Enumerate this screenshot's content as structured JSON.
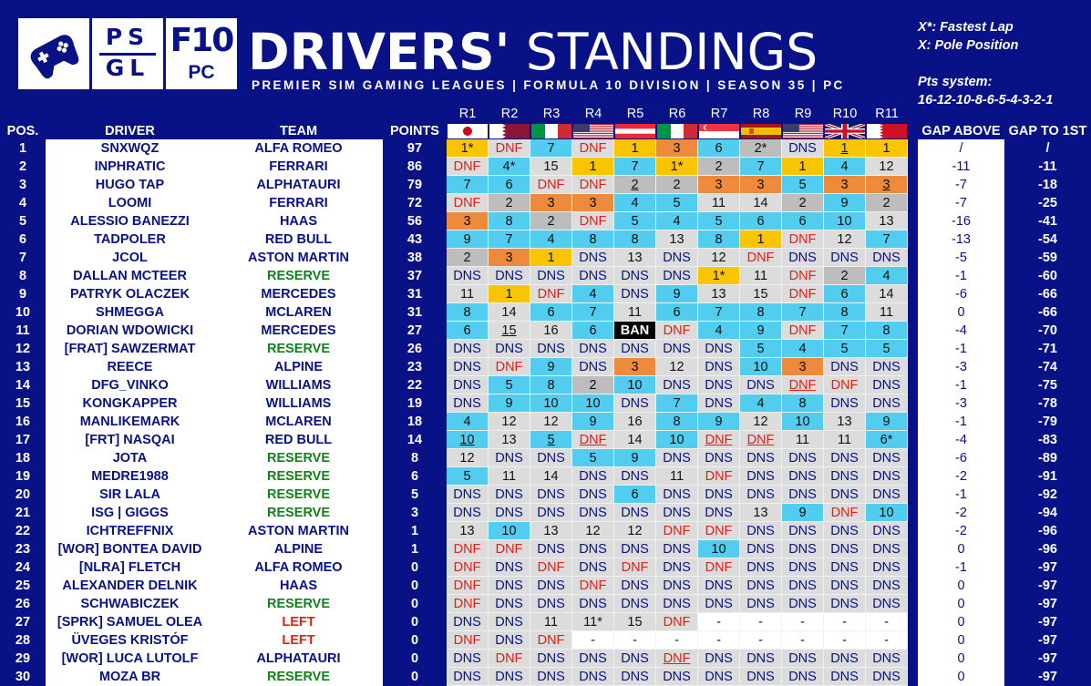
{
  "logos": {
    "psgl": [
      "PS",
      "GL"
    ],
    "f10": "F10",
    "pc": "PC"
  },
  "title": {
    "bold": "DRIVERS'",
    "light": " STANDINGS"
  },
  "subtitle": "PREMIER SIM GAMING LEAGUES | FORMULA 10 DIVISION | SEASON 35 | PC",
  "legend": [
    "X*: Fastest Lap",
    "X:  Pole Position",
    "Pts system:",
    "16-12-10-8-6-5-4-3-2-1"
  ],
  "headers": {
    "pos": "POS.",
    "driver": "DRIVER",
    "team": "TEAM",
    "points": "POINTS",
    "gap_above": "GAP ABOVE",
    "gap_first": "GAP TO 1ST"
  },
  "rounds": [
    "R1",
    "R2",
    "R3",
    "R4",
    "R5",
    "R6",
    "R7",
    "R8",
    "R9",
    "R10",
    "R11"
  ],
  "flags": [
    "japan",
    "qatar",
    "italy",
    "usa",
    "austria",
    "italy",
    "singapore",
    "spain",
    "usa",
    "uk",
    "bahrain"
  ],
  "colors": {
    "background": "#081286",
    "gold": "#f9c400",
    "silver": "#bdbdbd",
    "bronze": "#ee8a3c",
    "points": "#52cdf0",
    "no_points": "#dcdcdc",
    "dnf": "#e0201a",
    "reserve": "#12821a"
  },
  "rows": [
    {
      "pos": "1",
      "driver": "SNXWQZ",
      "team": "ALFA ROMEO",
      "points": "97",
      "results": [
        "1*",
        "DNF",
        "7",
        "DNF",
        "1",
        "3",
        "6",
        "2*",
        "DNS",
        "1_",
        "1"
      ],
      "gap_above": "/",
      "gap_first": "/"
    },
    {
      "pos": "2",
      "driver": "INPHRATIC",
      "team": "FERRARI",
      "points": "86",
      "results": [
        "DNF",
        "4*",
        "15",
        "1",
        "7",
        "1*",
        "2",
        "7",
        "1",
        "4",
        "12"
      ],
      "gap_above": "-11",
      "gap_first": "-11"
    },
    {
      "pos": "3",
      "driver": "HUGO TAP",
      "team": "ALPHATAURI",
      "points": "79",
      "results": [
        "7",
        "6",
        "DNF",
        "DNF",
        "2_",
        "2",
        "3",
        "3",
        "5",
        "3",
        "3_"
      ],
      "gap_above": "-7",
      "gap_first": "-18"
    },
    {
      "pos": "4",
      "driver": "LOOMI",
      "team": "FERRARI",
      "points": "72",
      "results": [
        "DNF",
        "2",
        "3",
        "3",
        "4",
        "5",
        "11",
        "14",
        "2",
        "9",
        "2"
      ],
      "gap_above": "-7",
      "gap_first": "-25"
    },
    {
      "pos": "5",
      "driver": "ALESSIO BANEZZI",
      "team": "HAAS",
      "points": "56",
      "results": [
        "3",
        "8",
        "2",
        "DNF",
        "5",
        "4",
        "5",
        "6",
        "6",
        "10",
        "13"
      ],
      "gap_above": "-16",
      "gap_first": "-41"
    },
    {
      "pos": "6",
      "driver": "TADPOLER",
      "team": "RED BULL",
      "points": "43",
      "results": [
        "9",
        "7",
        "4",
        "8",
        "8",
        "13",
        "8",
        "1",
        "DNF",
        "12",
        "7"
      ],
      "gap_above": "-13",
      "gap_first": "-54"
    },
    {
      "pos": "7",
      "driver": "JCOL",
      "team": "ASTON MARTIN",
      "points": "38",
      "results": [
        "2",
        "3",
        "1",
        "DNS",
        "13",
        "DNS",
        "12",
        "DNF",
        "DNS",
        "DNS",
        "DNS"
      ],
      "gap_above": "-5",
      "gap_first": "-59"
    },
    {
      "pos": "8",
      "driver": "DALLAN MCTEER",
      "team": "RESERVE",
      "points": "37",
      "results": [
        "DNS",
        "DNS",
        "DNS",
        "DNS",
        "DNS",
        "DNS",
        "1*",
        "11",
        "DNF",
        "2",
        "4"
      ],
      "gap_above": "-1",
      "gap_first": "-60"
    },
    {
      "pos": "9",
      "driver": "PATRYK OLACZEK",
      "team": "MERCEDES",
      "points": "31",
      "results": [
        "11",
        "1",
        "DNF",
        "4",
        "DNS",
        "9",
        "13",
        "15",
        "DNF",
        "6",
        "14"
      ],
      "gap_above": "-6",
      "gap_first": "-66"
    },
    {
      "pos": "10",
      "driver": "SHMEGGA",
      "team": "MCLAREN",
      "points": "31",
      "results": [
        "8",
        "14",
        "6",
        "7",
        "11",
        "6",
        "7",
        "8",
        "7",
        "8",
        "11"
      ],
      "gap_above": "0",
      "gap_first": "-66"
    },
    {
      "pos": "11",
      "driver": "DORIAN WDOWICKI",
      "team": "MERCEDES",
      "points": "27",
      "results": [
        "6",
        "15_",
        "16",
        "6",
        "BAN",
        "DNF",
        "4",
        "9",
        "DNF",
        "7",
        "8"
      ],
      "gap_above": "-4",
      "gap_first": "-70"
    },
    {
      "pos": "12",
      "driver": "[FRAT] SAWZERMAT",
      "team": "RESERVE",
      "points": "26",
      "results": [
        "DNS",
        "DNS",
        "DNS",
        "DNS",
        "DNS",
        "DNS",
        "DNS",
        "5",
        "4",
        "5",
        "5"
      ],
      "gap_above": "-1",
      "gap_first": "-71"
    },
    {
      "pos": "13",
      "driver": "REECE",
      "team": "ALPINE",
      "points": "23",
      "results": [
        "DNS",
        "DNF",
        "9",
        "DNS",
        "3",
        "12",
        "DNS",
        "10",
        "3",
        "DNS",
        "DNS"
      ],
      "gap_above": "-3",
      "gap_first": "-74"
    },
    {
      "pos": "14",
      "driver": "DFG_VINKO",
      "team": "WILLIAMS",
      "points": "22",
      "results": [
        "DNS",
        "5",
        "8",
        "2",
        "10",
        "DNS",
        "DNS",
        "DNS",
        "DNF_",
        "DNF",
        "DNS"
      ],
      "gap_above": "-1",
      "gap_first": "-75"
    },
    {
      "pos": "15",
      "driver": "KONGKAPPER",
      "team": "WILLIAMS",
      "points": "19",
      "results": [
        "DNS",
        "9",
        "10",
        "10",
        "DNS",
        "7",
        "DNS",
        "4",
        "8",
        "DNS",
        "DNS"
      ],
      "gap_above": "-3",
      "gap_first": "-78"
    },
    {
      "pos": "16",
      "driver": "MANLIKEMARK",
      "team": "MCLAREN",
      "points": "18",
      "results": [
        "4",
        "12",
        "12",
        "9",
        "16",
        "8",
        "9",
        "12",
        "10",
        "13",
        "9"
      ],
      "gap_above": "-1",
      "gap_first": "-79"
    },
    {
      "pos": "17",
      "driver": "[FRT] NASQAI",
      "team": "RED BULL",
      "points": "14",
      "results": [
        "10_",
        "13",
        "5_",
        "DNF_",
        "14",
        "10",
        "DNF_",
        "DNF_",
        "11",
        "11",
        "6*"
      ],
      "gap_above": "-4",
      "gap_first": "-83"
    },
    {
      "pos": "18",
      "driver": "JOTA",
      "team": "RESERVE",
      "points": "8",
      "results": [
        "12",
        "DNS",
        "DNS",
        "5",
        "9",
        "DNS",
        "DNS",
        "DNS",
        "DNS",
        "DNS",
        "DNS"
      ],
      "gap_above": "-6",
      "gap_first": "-89"
    },
    {
      "pos": "19",
      "driver": "MEDRE1988",
      "team": "RESERVE",
      "points": "6",
      "results": [
        "5",
        "11",
        "14",
        "DNS",
        "DNS",
        "11",
        "DNF",
        "DNS",
        "DNS",
        "DNS",
        "DNS"
      ],
      "gap_above": "-2",
      "gap_first": "-91"
    },
    {
      "pos": "20",
      "driver": "SIR LALA",
      "team": "RESERVE",
      "points": "5",
      "results": [
        "DNS",
        "DNS",
        "DNS",
        "DNS",
        "6",
        "DNS",
        "DNS",
        "DNS",
        "DNS",
        "DNS",
        "DNS"
      ],
      "gap_above": "-1",
      "gap_first": "-92"
    },
    {
      "pos": "21",
      "driver": "ISG | GIGGS",
      "team": "RESERVE",
      "points": "3",
      "results": [
        "DNS",
        "DNS",
        "DNS",
        "DNS",
        "DNS",
        "DNS",
        "DNS",
        "13",
        "9",
        "DNF",
        "10"
      ],
      "gap_above": "-2",
      "gap_first": "-94"
    },
    {
      "pos": "22",
      "driver": "ICHTREFFNIX",
      "team": "ASTON MARTIN",
      "points": "1",
      "results": [
        "13",
        "10",
        "13",
        "12",
        "12",
        "DNF",
        "DNF",
        "DNS",
        "DNS",
        "DNS",
        "DNS"
      ],
      "gap_above": "-2",
      "gap_first": "-96"
    },
    {
      "pos": "23",
      "driver": "[WOR] BONTEA DAVID",
      "team": "ALPINE",
      "points": "1",
      "results": [
        "DNF",
        "DNF",
        "DNS",
        "DNS",
        "DNS",
        "DNS",
        "10",
        "DNS",
        "DNS",
        "DNS",
        "DNS"
      ],
      "gap_above": "0",
      "gap_first": "-96"
    },
    {
      "pos": "24",
      "driver": "[NLRA] FLETCH",
      "team": "ALFA ROMEO",
      "points": "0",
      "results": [
        "DNF",
        "DNS",
        "DNF",
        "DNS",
        "DNF",
        "DNS",
        "DNF",
        "DNS",
        "DNS",
        "DNS",
        "DNS"
      ],
      "gap_above": "-1",
      "gap_first": "-97"
    },
    {
      "pos": "25",
      "driver": "ALEXANDER DELNIK",
      "team": "HAAS",
      "points": "0",
      "results": [
        "DNF",
        "DNS",
        "DNS",
        "DNF",
        "DNS",
        "DNS",
        "DNS",
        "DNS",
        "DNS",
        "DNS",
        "DNS"
      ],
      "gap_above": "0",
      "gap_first": "-97"
    },
    {
      "pos": "26",
      "driver": "SCHWABICZEK",
      "team": "RESERVE",
      "points": "0",
      "results": [
        "DNF",
        "DNS",
        "DNS",
        "DNS",
        "DNS",
        "DNS",
        "DNS",
        "DNS",
        "DNS",
        "DNS",
        "DNS"
      ],
      "gap_above": "0",
      "gap_first": "-97"
    },
    {
      "pos": "27",
      "driver": "[SPRK] SAMUEL OLEA",
      "team": "LEFT",
      "points": "0",
      "results": [
        "DNS",
        "DNS",
        "11",
        "11*",
        "15",
        "DNF",
        "-",
        "-",
        "-",
        "-",
        "-"
      ],
      "gap_above": "0",
      "gap_first": "-97"
    },
    {
      "pos": "28",
      "driver": "ÜVEGES KRISTÓF",
      "team": "LEFT",
      "points": "0",
      "results": [
        "DNF",
        "DNS",
        "DNF",
        "-",
        "-",
        "-",
        "-",
        "-",
        "-",
        "-",
        "-"
      ],
      "gap_above": "0",
      "gap_first": "-97"
    },
    {
      "pos": "29",
      "driver": "[WOR] LUCA LUTOLF",
      "team": "ALPHATAURI",
      "points": "0",
      "results": [
        "DNS",
        "DNF",
        "DNS",
        "DNS",
        "DNS",
        "DNF_",
        "DNS",
        "DNS",
        "DNS",
        "DNS",
        "DNS"
      ],
      "gap_above": "0",
      "gap_first": "-97"
    },
    {
      "pos": "30",
      "driver": "MOZA BR",
      "team": "RESERVE",
      "points": "0",
      "results": [
        "DNS",
        "DNS",
        "DNS",
        "DNS",
        "DNS",
        "DNS",
        "DNS",
        "DNS",
        "DNS",
        "DNS",
        "DNS"
      ],
      "gap_above": "0",
      "gap_first": "-97"
    }
  ]
}
